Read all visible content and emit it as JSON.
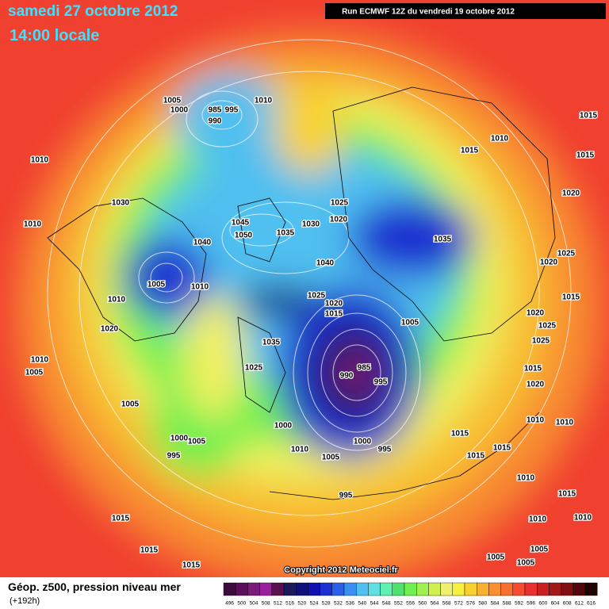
{
  "header": {
    "date": "samedi 27 octobre 2012",
    "time": "14:00 locale",
    "run": "Run ECMWF 12Z du vendredi 19 octobre 2012"
  },
  "footer": {
    "title": "Géop. z500, pression niveau mer",
    "lead": "(+192h)",
    "copyright": "Copyright 2012 Meteociel.fr"
  },
  "legend": {
    "labels": [
      496,
      500,
      504,
      508,
      512,
      516,
      520,
      524,
      528,
      532,
      536,
      540,
      544,
      548,
      552,
      556,
      560,
      564,
      568,
      572,
      576,
      580,
      584,
      588,
      592,
      596,
      600,
      604,
      608,
      612,
      616
    ],
    "colors": [
      "#3d0a3d",
      "#5a0f5a",
      "#7a1a7a",
      "#9a1f9a",
      "#5a1050",
      "#1a1a5a",
      "#10107a",
      "#1010b0",
      "#1a30d0",
      "#2a60e8",
      "#3a90f0",
      "#50c0f0",
      "#60e0e0",
      "#60f0b0",
      "#50e070",
      "#70f050",
      "#a0f050",
      "#d0f050",
      "#f0f070",
      "#f8f040",
      "#f8d030",
      "#f8b030",
      "#f89030",
      "#f87030",
      "#f84a30",
      "#e83030",
      "#c82020",
      "#a01818",
      "#801010",
      "#500808",
      "#200404"
    ]
  },
  "isobars": [
    1005,
    1000,
    985,
    995,
    990,
    1010,
    1010,
    1030,
    1010,
    1045,
    1050,
    1035,
    1030,
    1025,
    1020,
    1040,
    1040,
    1035,
    1005,
    1010,
    1010,
    1025,
    1020,
    1015,
    1005,
    1020,
    1035,
    1025,
    985,
    990,
    995,
    1010,
    1005,
    1005,
    1000,
    1000,
    1005,
    1000,
    995,
    1010,
    1005,
    995,
    995,
    1015,
    1015,
    1015,
    1015,
    1010,
    1015,
    1015,
    1020,
    1025,
    1020,
    1015,
    1020,
    1025,
    1025,
    1015,
    1020,
    1010,
    1010,
    1010,
    1015,
    1015,
    1015,
    1015,
    1010,
    1010,
    1005,
    1005,
    1005
  ]
}
